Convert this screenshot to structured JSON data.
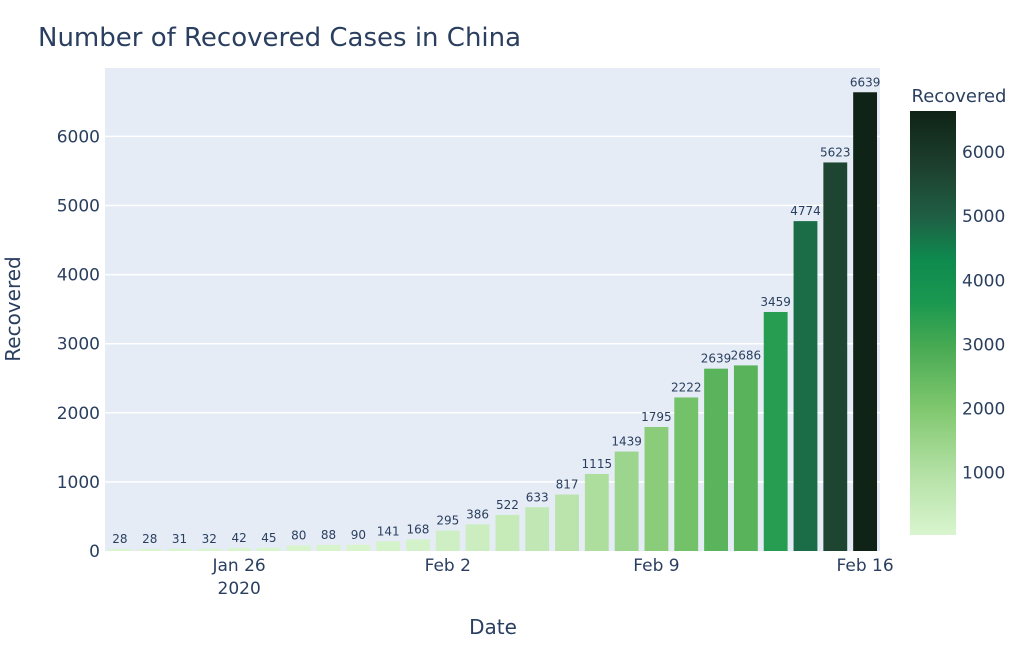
{
  "chart_data": {
    "type": "bar",
    "title": "Number of Recovered Cases in China",
    "xlabel": "Date",
    "ylabel": "Recovered",
    "x": [
      "2020-01-22",
      "2020-01-23",
      "2020-01-24",
      "2020-01-25",
      "2020-01-26",
      "2020-01-27",
      "2020-01-28",
      "2020-01-29",
      "2020-01-30",
      "2020-01-31",
      "2020-02-01",
      "2020-02-02",
      "2020-02-03",
      "2020-02-04",
      "2020-02-05",
      "2020-02-06",
      "2020-02-07",
      "2020-02-08",
      "2020-02-09",
      "2020-02-10",
      "2020-02-11",
      "2020-02-12",
      "2020-02-13",
      "2020-02-14",
      "2020-02-15",
      "2020-02-16"
    ],
    "values": [
      28,
      28,
      31,
      32,
      42,
      45,
      80,
      88,
      90,
      141,
      168,
      295,
      386,
      522,
      633,
      817,
      1115,
      1439,
      1795,
      2222,
      2639,
      2686,
      3459,
      4774,
      5623,
      6639
    ],
    "xticks": [
      {
        "date": "2020-01-26",
        "label": "Jan 26",
        "sublabel": "2020"
      },
      {
        "date": "2020-02-02",
        "label": "Feb 2",
        "sublabel": ""
      },
      {
        "date": "2020-02-09",
        "label": "Feb 9",
        "sublabel": ""
      },
      {
        "date": "2020-02-16",
        "label": "Feb 16",
        "sublabel": ""
      }
    ],
    "yticks": [
      0,
      1000,
      2000,
      3000,
      4000,
      5000,
      6000
    ],
    "ylim": [
      0,
      6990
    ],
    "xlim": [
      "2020-01-21T12:00",
      "2020-02-16T12:00"
    ],
    "grid": true,
    "colorscale": {
      "title": "Recovered",
      "min": 28,
      "max": 6639,
      "ticks": [
        1000,
        2000,
        3000,
        4000,
        5000,
        6000
      ],
      "stops": [
        [
          0.0,
          "#d9f5cf"
        ],
        [
          0.15,
          "#b2e0a3"
        ],
        [
          0.3,
          "#7fc76e"
        ],
        [
          0.45,
          "#45a952"
        ],
        [
          0.55,
          "#1a9850"
        ],
        [
          0.65,
          "#0e8a4e"
        ],
        [
          0.75,
          "#1f5f44"
        ],
        [
          0.87,
          "#1d3f2e"
        ],
        [
          1.0,
          "#0f2316"
        ]
      ]
    },
    "colors": {
      "plot_bg": "#e5ecf6",
      "grid": "#ffffff",
      "text": "#2a3f5f"
    }
  }
}
